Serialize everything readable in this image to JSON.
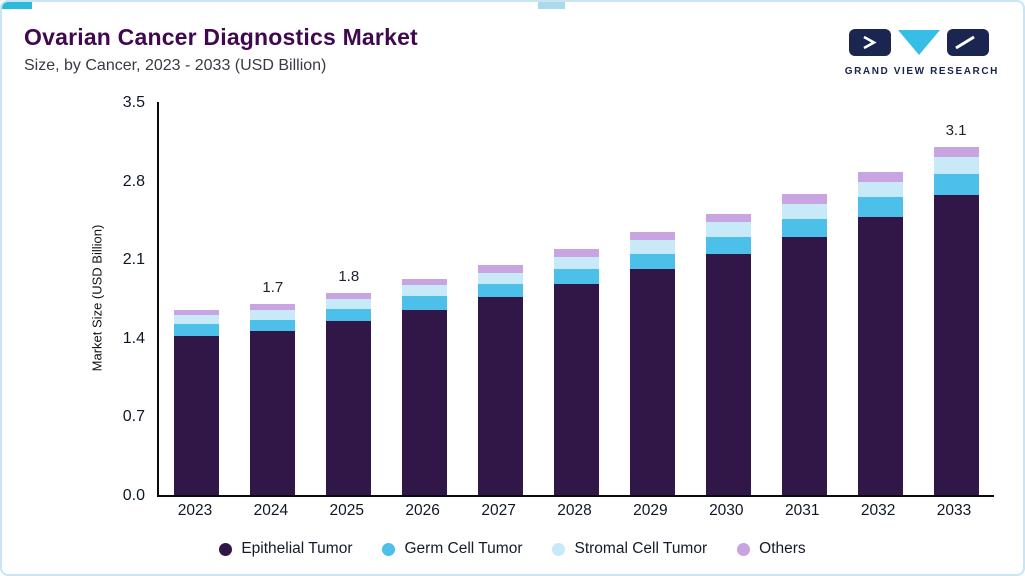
{
  "header": {
    "title": "Ovarian Cancer Diagnostics Market",
    "subtitle": "Size, by Cancer, 2023 - 2033 (USD Billion)",
    "logo_text": "GRAND VIEW RESEARCH"
  },
  "chart_data": {
    "type": "bar",
    "stacked": true,
    "title": "Ovarian Cancer Diagnostics Market",
    "subtitle": "Size, by Cancer, 2023 - 2033 (USD Billion)",
    "xlabel": "",
    "ylabel": "Market Size (USD Billion)",
    "ylim": [
      0,
      3.5
    ],
    "ytick_labels": [
      "0.0",
      "0.7",
      "1.4",
      "2.1",
      "2.8",
      "3.5"
    ],
    "categories": [
      "2023",
      "2024",
      "2025",
      "2026",
      "2027",
      "2028",
      "2029",
      "2030",
      "2031",
      "2032",
      "2033"
    ],
    "series": [
      {
        "name": "Epithelial Tumor",
        "color": "#301747",
        "values": [
          1.42,
          1.46,
          1.55,
          1.65,
          1.76,
          1.88,
          2.01,
          2.15,
          2.3,
          2.48,
          2.67
        ]
      },
      {
        "name": "Germ Cell Tumor",
        "color": "#4cc0e8",
        "values": [
          0.1,
          0.1,
          0.11,
          0.12,
          0.12,
          0.13,
          0.14,
          0.15,
          0.16,
          0.17,
          0.19
        ]
      },
      {
        "name": "Stromal Cell Tumor",
        "color": "#c8e9f7",
        "values": [
          0.08,
          0.09,
          0.09,
          0.1,
          0.1,
          0.11,
          0.12,
          0.13,
          0.13,
          0.14,
          0.15
        ]
      },
      {
        "name": "Others",
        "color": "#c8a4e0",
        "values": [
          0.05,
          0.05,
          0.05,
          0.05,
          0.07,
          0.07,
          0.07,
          0.07,
          0.09,
          0.09,
          0.09
        ]
      }
    ],
    "totals": [
      1.65,
      1.7,
      1.8,
      1.92,
      2.05,
      2.19,
      2.34,
      2.5,
      2.68,
      2.88,
      3.1
    ],
    "bar_labels": {
      "2024": "1.7",
      "2025": "1.8",
      "2033": "3.1"
    },
    "legend_position": "bottom",
    "grid": false
  }
}
